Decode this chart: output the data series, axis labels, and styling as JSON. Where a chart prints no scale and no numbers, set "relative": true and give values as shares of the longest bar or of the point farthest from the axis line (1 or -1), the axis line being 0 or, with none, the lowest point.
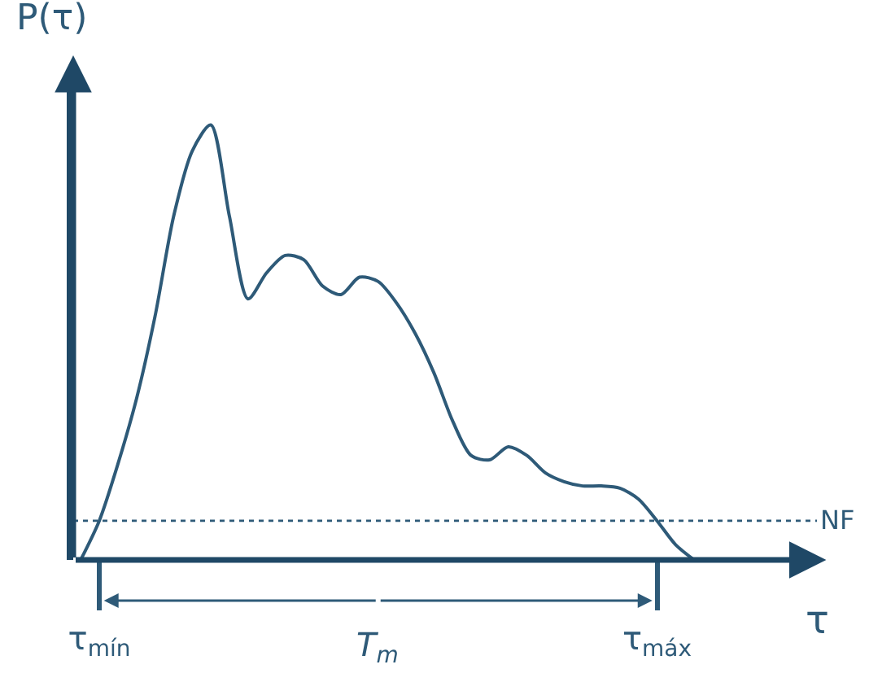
{
  "chart_data": {
    "type": "line",
    "relative": true,
    "xlabel": "τ",
    "ylabel": "P(τ)",
    "color": "#2e5a78",
    "categories": [
      null,
      "τ$_{mín}$",
      null,
      null,
      null,
      null,
      null,
      null,
      null,
      null,
      null,
      null,
      null,
      null,
      null,
      null,
      null,
      null,
      null,
      null,
      null,
      null,
      null,
      null,
      null,
      null,
      null,
      null,
      null,
      null,
      null,
      "τ$_{máx}$",
      null,
      null
    ],
    "values": [
      0,
      0.09,
      0.22,
      0.37,
      0.56,
      0.79,
      0.94,
      1,
      0.79,
      0.6,
      0.66,
      0.7,
      0.69,
      0.63,
      0.61,
      0.65,
      0.64,
      0.59,
      0.52,
      0.43,
      0.32,
      0.24,
      0.23,
      0.26,
      0.24,
      0.2,
      0.18,
      0.17,
      0.17,
      0.165,
      0.14,
      0.09,
      0.035,
      0
    ],
    "ref_lines": [
      {
        "axis": "y",
        "value": 0.09,
        "label": "NF",
        "line_style": "dotted"
      }
    ],
    "annotations": [
      "T$_{m}$"
    ],
    "grid": false,
    "legend": false,
    "marker": "none",
    "line_style": "solid"
  }
}
